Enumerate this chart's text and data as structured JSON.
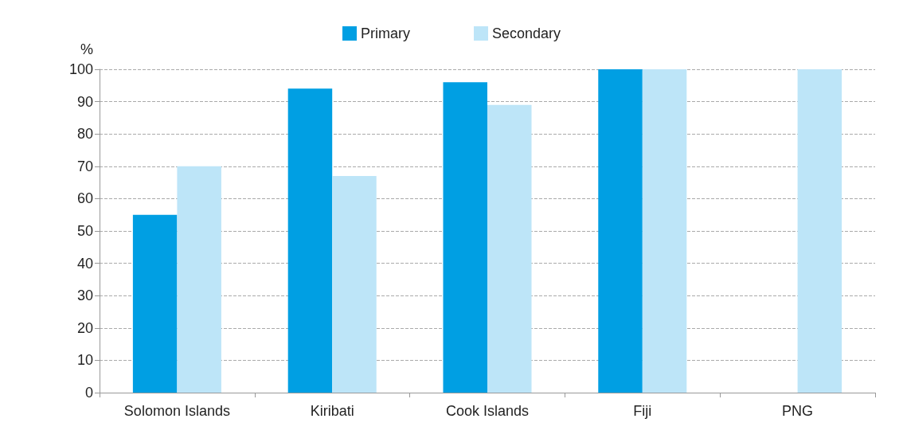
{
  "chart_data": {
    "type": "bar",
    "ylabel": "%",
    "categories": [
      "Solomon Islands",
      "Kiribati",
      "Cook Islands",
      "Fiji",
      "PNG"
    ],
    "series": [
      {
        "name": "Primary",
        "color": "#009fe3",
        "values": [
          55,
          94,
          96,
          100,
          null
        ]
      },
      {
        "name": "Secondary",
        "color": "#bde5f8",
        "values": [
          70,
          67,
          89,
          100,
          100
        ]
      }
    ],
    "ylim": [
      0,
      100
    ],
    "yticks": [
      0,
      10,
      20,
      30,
      40,
      50,
      60,
      70,
      80,
      90,
      100
    ],
    "grid": "y",
    "legend": "top"
  }
}
